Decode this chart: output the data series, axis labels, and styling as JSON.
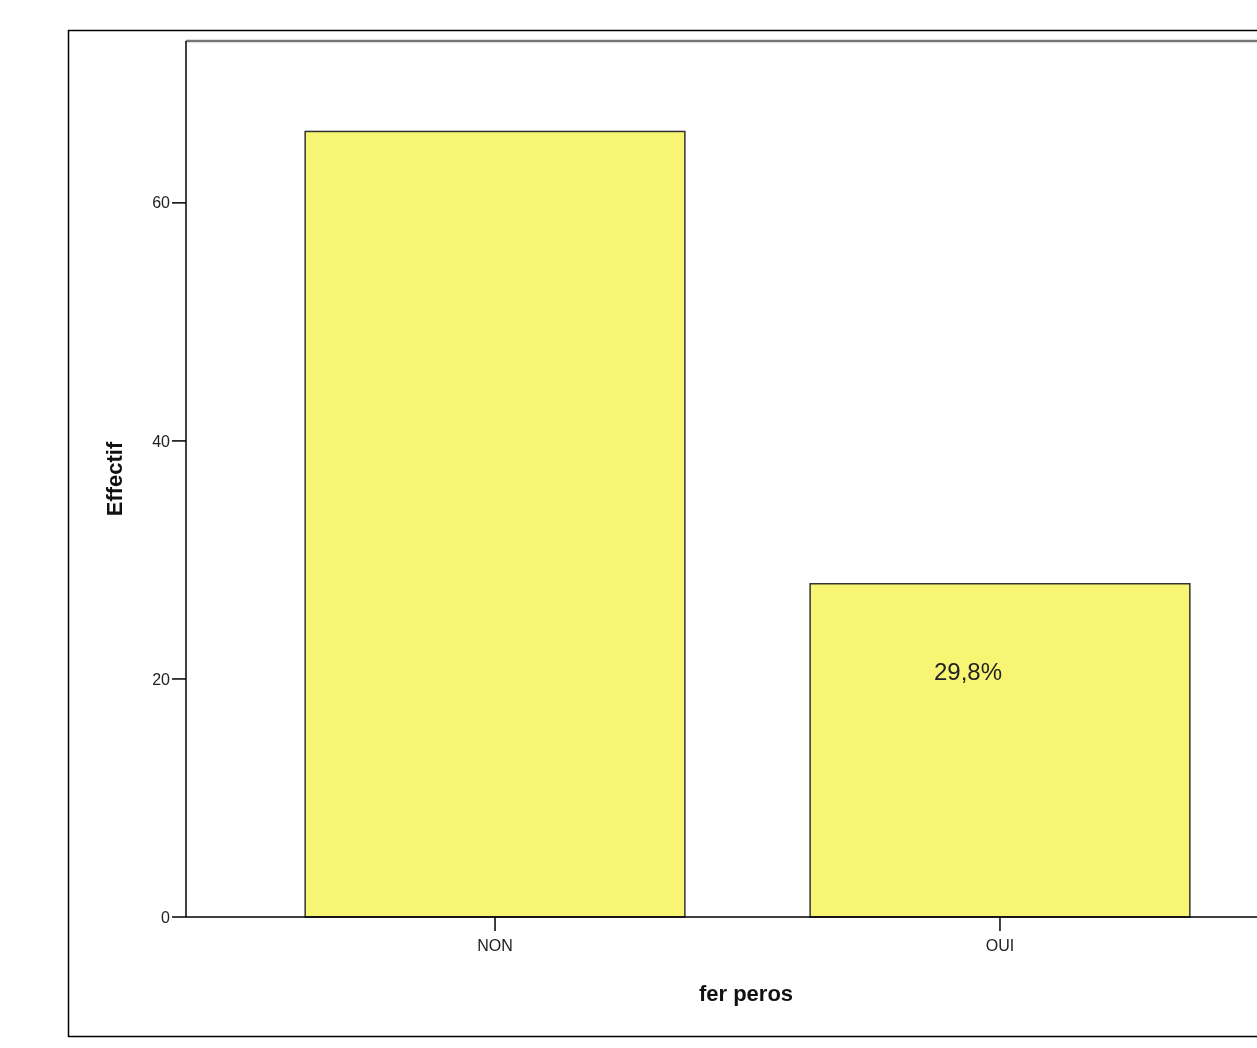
{
  "chart_data": {
    "type": "bar",
    "xlabel": "fer peros",
    "ylabel": "Effectif",
    "categories": [
      "NON",
      "OUI"
    ],
    "values": [
      66,
      28
    ],
    "color": "#f8f574",
    "ylim": [
      0,
      73.6
    ],
    "yticks": [
      0,
      20,
      40,
      60
    ],
    "annotations": [
      "29,8%"
    ],
    "grid": false
  }
}
